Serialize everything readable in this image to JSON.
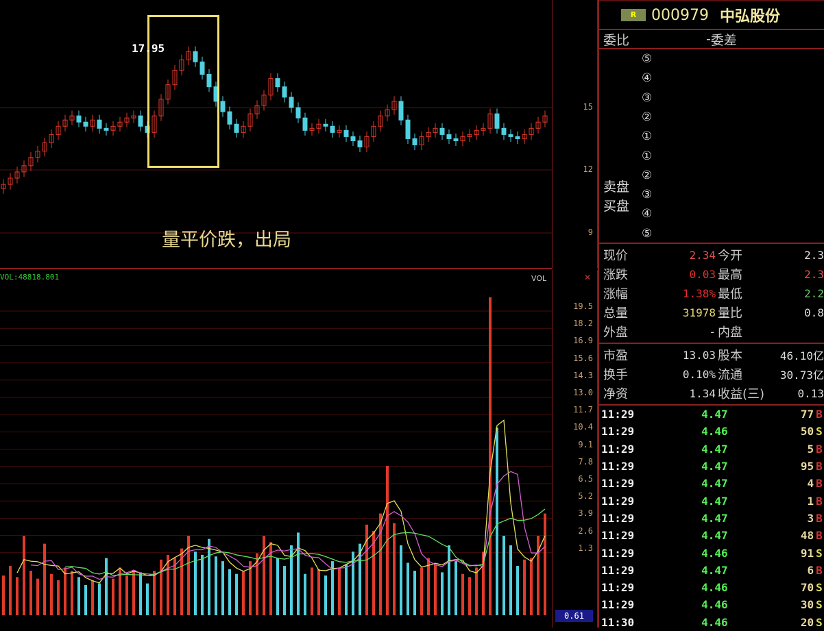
{
  "stock": {
    "badge": "R",
    "code": "000979",
    "name": "中弘股份"
  },
  "weibi": {
    "label": "委比",
    "value": "-",
    "label2": "委差"
  },
  "orderbook": {
    "sell_label": "卖盘",
    "buy_label": "买盘",
    "levels": [
      "⑤",
      "④",
      "③",
      "②",
      "①",
      "①",
      "②",
      "③",
      "④",
      "⑤"
    ]
  },
  "quote1": [
    {
      "l": "现价",
      "v": "2.34",
      "vc": "#e05050",
      "l2": "今开",
      "v2": "2.3",
      "v2c": "#ddd"
    },
    {
      "l": "涨跌",
      "v": "0.03",
      "vc": "#e03030",
      "l2": "最高",
      "v2": "2.3",
      "v2c": "#e05050"
    },
    {
      "l": "涨幅",
      "v": "1.38%",
      "vc": "#e03030",
      "l2": "最低",
      "v2": "2.2",
      "v2c": "#6c6"
    },
    {
      "l": "总量",
      "v": "31978",
      "vc": "#e8d870",
      "l2": "量比",
      "v2": "0.8",
      "v2c": "#ddd"
    },
    {
      "l": "外盘",
      "v": "-",
      "vc": "#ddd",
      "l2": "内盘",
      "v2": "",
      "v2c": "#ddd"
    }
  ],
  "quote2": [
    {
      "l": "市盈",
      "v": "13.03",
      "vc": "#ddd",
      "l2": "股本",
      "v2": "46.10亿",
      "v2c": "#ddd"
    },
    {
      "l": "换手",
      "v": "0.10%",
      "vc": "#ddd",
      "l2": "流通",
      "v2": "30.73亿",
      "v2c": "#ddd"
    },
    {
      "l": "净资",
      "v": "1.34",
      "vc": "#ddd",
      "l2": "收益(三)",
      "v2": "0.13",
      "v2c": "#ddd"
    }
  ],
  "trades": [
    {
      "t": "11:29",
      "p": "4.47",
      "n": "77",
      "s": "B"
    },
    {
      "t": "11:29",
      "p": "4.46",
      "n": "50",
      "s": "S"
    },
    {
      "t": "11:29",
      "p": "4.47",
      "n": "5",
      "s": "B"
    },
    {
      "t": "11:29",
      "p": "4.47",
      "n": "95",
      "s": "B"
    },
    {
      "t": "11:29",
      "p": "4.47",
      "n": "4",
      "s": "B"
    },
    {
      "t": "11:29",
      "p": "4.47",
      "n": "1",
      "s": "B"
    },
    {
      "t": "11:29",
      "p": "4.47",
      "n": "3",
      "s": "B"
    },
    {
      "t": "11:29",
      "p": "4.47",
      "n": "48",
      "s": "B"
    },
    {
      "t": "11:29",
      "p": "4.46",
      "n": "91",
      "s": "S"
    },
    {
      "t": "11:29",
      "p": "4.47",
      "n": "6",
      "s": "B"
    },
    {
      "t": "11:29",
      "p": "4.46",
      "n": "70",
      "s": "S"
    },
    {
      "t": "11:29",
      "p": "4.46",
      "n": "30",
      "s": "S"
    },
    {
      "t": "11:30",
      "p": "4.46",
      "n": "20",
      "s": "S"
    }
  ],
  "chart": {
    "annotation": "量平价跌，出局",
    "peak_label": "17.95",
    "price_ticks": [
      "15",
      "12",
      "9"
    ],
    "vol_label": "VOL",
    "vol_readout": "VOL:48818.801",
    "vol_ticks": [
      "19.5",
      "18.2",
      "16.9",
      "15.6",
      "14.3",
      "13.0",
      "11.7",
      "10.4",
      "9.1",
      "7.8",
      "6.5",
      "5.2",
      "3.9",
      "2.6",
      "1.3"
    ],
    "vol_current": "0.61",
    "up_color": "#e03a2a",
    "down_color": "#50d0e0",
    "closes": [
      11.3,
      11.6,
      11.9,
      12.2,
      12.6,
      12.9,
      13.3,
      13.7,
      14.1,
      14.4,
      14.6,
      14.3,
      14.1,
      14.4,
      14.0,
      13.9,
      14.1,
      14.3,
      14.5,
      14.6,
      14.1,
      13.8,
      14.6,
      15.4,
      16.1,
      16.8,
      17.3,
      17.7,
      17.2,
      16.6,
      16.0,
      15.3,
      14.8,
      14.2,
      13.8,
      14.1,
      14.7,
      15.1,
      15.6,
      16.4,
      16.0,
      15.5,
      15.0,
      14.5,
      13.9,
      14.0,
      14.2,
      14.1,
      13.8,
      13.9,
      13.6,
      13.4,
      13.1,
      13.6,
      14.1,
      14.6,
      14.9,
      15.3,
      14.4,
      13.5,
      13.2,
      13.6,
      13.8,
      14.0,
      13.7,
      13.5,
      13.4,
      13.6,
      13.7,
      13.9,
      14.0,
      14.7,
      14.0,
      13.7,
      13.6,
      13.5,
      13.7,
      14.0,
      14.3,
      14.6
    ],
    "volumes": [
      2.5,
      3.1,
      2.4,
      5.0,
      2.8,
      2.3,
      4.5,
      2.6,
      2.2,
      3.0,
      2.8,
      2.4,
      1.9,
      2.2,
      2.0,
      3.6,
      2.3,
      3.0,
      2.5,
      2.8,
      2.7,
      2.0,
      2.8,
      3.5,
      3.8,
      3.6,
      4.2,
      5.0,
      4.0,
      3.8,
      4.8,
      3.7,
      3.4,
      2.9,
      2.6,
      2.8,
      3.4,
      3.9,
      5.0,
      4.6,
      3.6,
      3.1,
      4.4,
      5.2,
      2.6,
      3.0,
      2.9,
      2.5,
      3.4,
      3.0,
      3.2,
      4.0,
      4.5,
      5.7,
      5.3,
      6.4,
      9.4,
      5.8,
      4.4,
      3.3,
      2.8,
      3.0,
      3.6,
      3.2,
      2.7,
      4.4,
      3.4,
      2.6,
      2.4,
      3.0,
      4.0,
      20.0,
      11.8,
      5.0,
      4.4,
      3.1,
      3.5,
      3.6,
      5.0,
      6.4
    ]
  }
}
